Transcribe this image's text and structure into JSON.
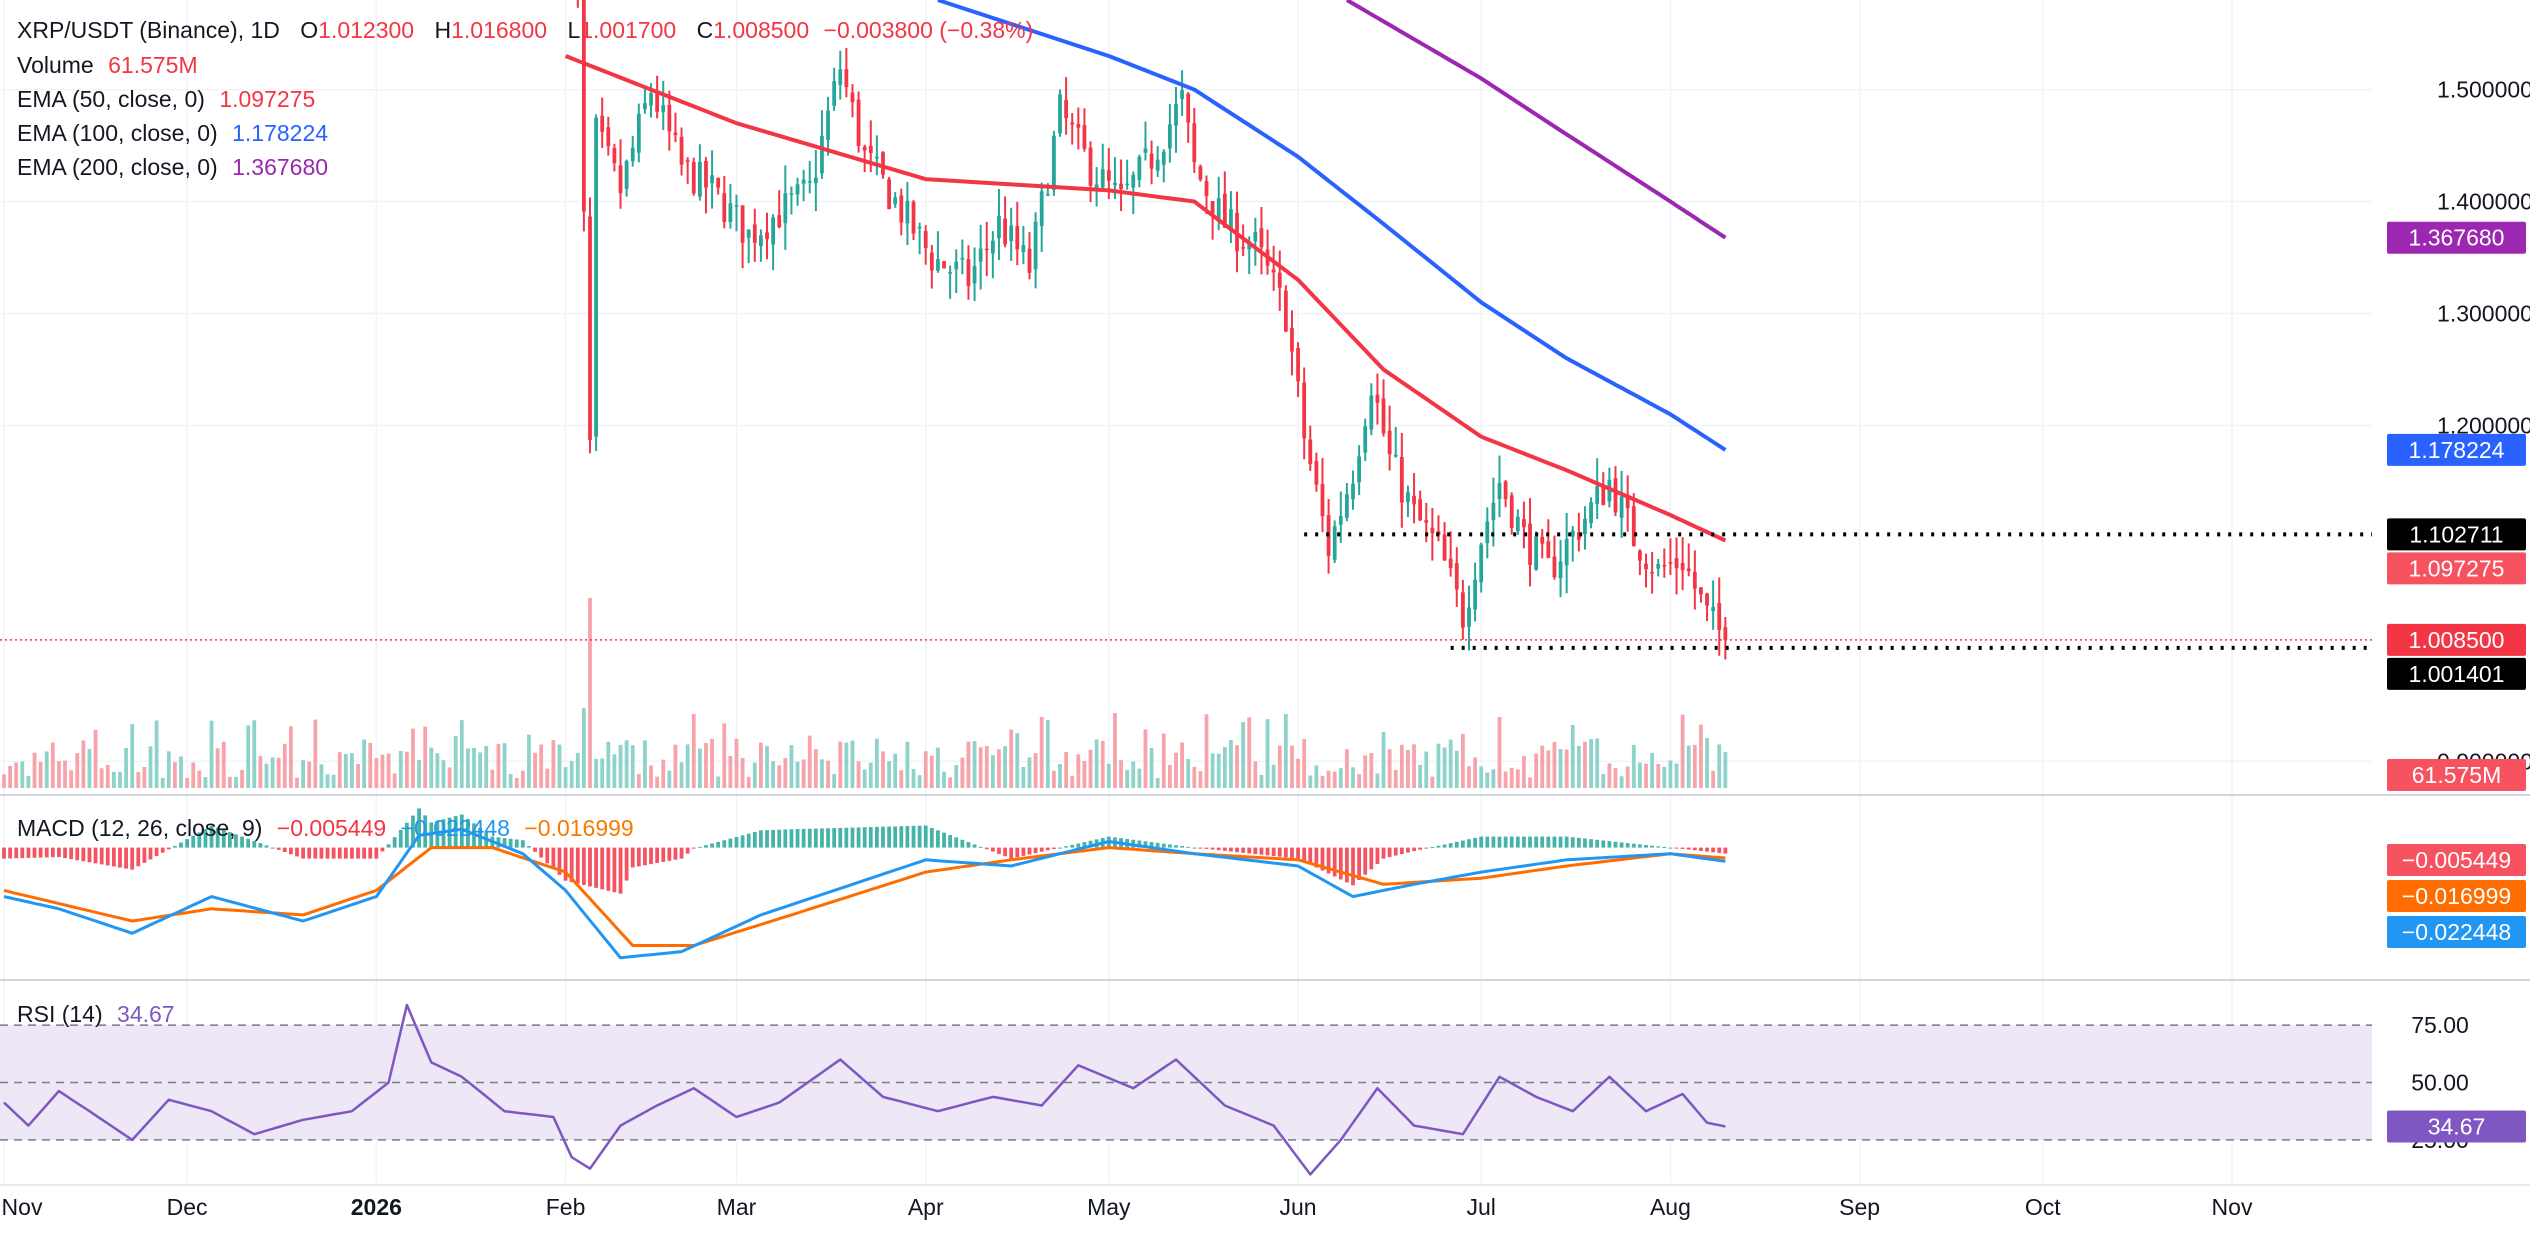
{
  "header": {
    "symbol": "XRP/USDT (Binance), 1D",
    "open_key": "O",
    "open": "1.012300",
    "high_key": "H",
    "high": "1.016800",
    "low_key": "L",
    "low": "1.001700",
    "close_key": "C",
    "close": "1.008500",
    "change": "−0.003800 (−0.38%)"
  },
  "legend": {
    "volume_label": "Volume",
    "volume_value": "61.575M",
    "ema50_label": "EMA (50, close, 0)",
    "ema50_value": "1.097275",
    "ema100_label": "EMA (100, close, 0)",
    "ema100_value": "1.178224",
    "ema200_label": "EMA (200, close, 0)",
    "ema200_value": "1.367680",
    "macd_label": "MACD (12, 26, close, 9)",
    "macd_hist": "−0.005449",
    "macd_line": "−0.022448",
    "macd_signal": "−0.016999",
    "rsi_label": "RSI (14)",
    "rsi_value": "34.67"
  },
  "price_badges": [
    {
      "value": 1.36768,
      "text": "1.367680",
      "color": "#9c27b0",
      "name": "ema200-price-badge"
    },
    {
      "value": 1.178224,
      "text": "1.178224",
      "color": "#2962ff",
      "name": "ema100-price-badge"
    },
    {
      "value": 1.102711,
      "text": "1.102711",
      "color": "#000000",
      "name": "resistance-price-badge"
    },
    {
      "value": 1.097275,
      "text": "1.097275",
      "color": "#f7525f",
      "name": "ema50-price-badge"
    },
    {
      "value": 1.0085,
      "text": "1.008500",
      "color": "#f23645",
      "name": "last-price-badge"
    },
    {
      "value": 1.001401,
      "text": "1.001401",
      "color": "#000000",
      "name": "support-price-badge"
    }
  ],
  "volume_badge": {
    "text": "61.575M",
    "color": "#f7525f"
  },
  "macd_badges": [
    {
      "value": -0.005449,
      "text": "−0.005449",
      "color": "#f7525f"
    },
    {
      "value": -0.016999,
      "text": "−0.016999",
      "color": "#ff6d00"
    },
    {
      "value": -0.022448,
      "text": "−0.022448",
      "color": "#2196f3"
    }
  ],
  "rsi_badge": {
    "value": 34.67,
    "text": "34.67",
    "color": "#7e57c2"
  },
  "colors": {
    "up": "#26a69a",
    "down": "#f23645",
    "up_volume": "#8ed3c9",
    "down_volume": "#f7a3aa",
    "ema50": "#f23645",
    "ema100": "#2962ff",
    "ema200": "#9c27b0",
    "macd": "#2196f3",
    "signal": "#ff6d00",
    "rsi": "#7e57c2",
    "rsi_band": "#ede7f6"
  },
  "chart_data": {
    "type": "candlestick",
    "title": "XRP/USDT (Binance), 1D",
    "y_ticks": [
      "1.500000",
      "1.400000",
      "1.300000",
      "1.200000",
      "0.900000"
    ],
    "y_tick_values": [
      1.5,
      1.4,
      1.3,
      1.2,
      0.9
    ],
    "ylim": [
      0.87,
      1.58
    ],
    "x_ticks": [
      "Nov",
      "Dec",
      "2026",
      "Feb",
      "Mar",
      "Apr",
      "May",
      "Jun",
      "Jul",
      "Aug",
      "Sep",
      "Oct",
      "Nov"
    ],
    "x_tick_dates": [
      "2025-11-01",
      "2025-12-01",
      "2026-01-01",
      "2026-02-01",
      "2026-03-01",
      "2026-04-01",
      "2026-05-01",
      "2026-06-01",
      "2026-07-01",
      "2026-08-01",
      "2026-09-01",
      "2026-10-01",
      "2026-11-01"
    ],
    "candles_start": "2026-02-01",
    "candles_end": "2026-08-10",
    "price_path": [
      [
        "2026-02-01",
        1.62
      ],
      [
        "2026-02-03",
        1.58
      ],
      [
        "2026-02-05",
        1.18
      ],
      [
        "2026-02-06",
        1.46
      ],
      [
        "2026-02-10",
        1.41
      ],
      [
        "2026-02-15",
        1.5
      ],
      [
        "2026-02-20",
        1.43
      ],
      [
        "2026-02-25",
        1.41
      ],
      [
        "2026-03-03",
        1.37
      ],
      [
        "2026-03-08",
        1.39
      ],
      [
        "2026-03-13",
        1.41
      ],
      [
        "2026-03-18",
        1.52
      ],
      [
        "2026-03-22",
        1.44
      ],
      [
        "2026-03-27",
        1.4
      ],
      [
        "2026-04-02",
        1.35
      ],
      [
        "2026-04-08",
        1.33
      ],
      [
        "2026-04-13",
        1.38
      ],
      [
        "2026-04-18",
        1.34
      ],
      [
        "2026-04-23",
        1.48
      ],
      [
        "2026-04-28",
        1.43
      ],
      [
        "2026-05-03",
        1.4
      ],
      [
        "2026-05-08",
        1.44
      ],
      [
        "2026-05-13",
        1.49
      ],
      [
        "2026-05-15",
        1.43
      ],
      [
        "2026-05-20",
        1.38
      ],
      [
        "2026-05-25",
        1.36
      ],
      [
        "2026-05-30",
        1.3
      ],
      [
        "2026-06-02",
        1.19
      ],
      [
        "2026-06-06",
        1.09
      ],
      [
        "2026-06-10",
        1.16
      ],
      [
        "2026-06-13",
        1.24
      ],
      [
        "2026-06-16",
        1.17
      ],
      [
        "2026-06-20",
        1.12
      ],
      [
        "2026-06-24",
        1.09
      ],
      [
        "2026-06-28",
        1.03
      ],
      [
        "2026-07-01",
        1.1
      ],
      [
        "2026-07-04",
        1.15
      ],
      [
        "2026-07-08",
        1.1
      ],
      [
        "2026-07-12",
        1.07
      ],
      [
        "2026-07-17",
        1.11
      ],
      [
        "2026-07-22",
        1.15
      ],
      [
        "2026-07-26",
        1.1
      ],
      [
        "2026-07-30",
        1.07
      ],
      [
        "2026-08-03",
        1.08
      ],
      [
        "2026-08-07",
        1.03
      ],
      [
        "2026-08-10",
        1.0085
      ]
    ],
    "ema50": [
      [
        "2026-02-01",
        1.53
      ],
      [
        "2026-03-01",
        1.47
      ],
      [
        "2026-04-01",
        1.42
      ],
      [
        "2026-05-01",
        1.41
      ],
      [
        "2026-05-15",
        1.4
      ],
      [
        "2026-06-01",
        1.33
      ],
      [
        "2026-06-15",
        1.25
      ],
      [
        "2026-07-01",
        1.19
      ],
      [
        "2026-07-15",
        1.16
      ],
      [
        "2026-08-01",
        1.12
      ],
      [
        "2026-08-10",
        1.097275
      ]
    ],
    "ema100": [
      [
        "2026-04-03",
        1.58
      ],
      [
        "2026-05-01",
        1.53
      ],
      [
        "2026-05-15",
        1.5
      ],
      [
        "2026-06-01",
        1.44
      ],
      [
        "2026-06-15",
        1.38
      ],
      [
        "2026-07-01",
        1.31
      ],
      [
        "2026-07-15",
        1.26
      ],
      [
        "2026-08-01",
        1.21
      ],
      [
        "2026-08-10",
        1.178224
      ]
    ],
    "ema200": [
      [
        "2026-06-09",
        1.58
      ],
      [
        "2026-07-01",
        1.51
      ],
      [
        "2026-07-15",
        1.46
      ],
      [
        "2026-08-01",
        1.4
      ],
      [
        "2026-08-10",
        1.36768
      ]
    ],
    "resistance": {
      "value": 1.102711,
      "from": "2026-06-02",
      "to": "2026-11-30"
    },
    "support": {
      "value": 1.001401,
      "from": "2026-06-26",
      "to": "2026-11-30"
    },
    "last_price": 1.0085,
    "volume_last": "61.575M",
    "volume_spike": {
      "date": "2026-02-05"
    },
    "macd": {
      "ylim": [
        -0.2,
        0.05
      ],
      "macd_line": [
        [
          "2025-11-01",
          -0.08
        ],
        [
          "2025-11-10",
          -0.1
        ],
        [
          "2025-11-22",
          -0.14
        ],
        [
          "2025-12-05",
          -0.08
        ],
        [
          "2025-12-20",
          -0.12
        ],
        [
          "2026-01-01",
          -0.08
        ],
        [
          "2026-01-08",
          0.02
        ],
        [
          "2026-01-15",
          0.03
        ],
        [
          "2026-01-25",
          -0.01
        ],
        [
          "2026-02-01",
          -0.07
        ],
        [
          "2026-02-10",
          -0.18
        ],
        [
          "2026-02-20",
          -0.17
        ],
        [
          "2026-03-05",
          -0.11
        ],
        [
          "2026-03-20",
          -0.06
        ],
        [
          "2026-04-01",
          -0.02
        ],
        [
          "2026-04-15",
          -0.03
        ],
        [
          "2026-05-01",
          0.01
        ],
        [
          "2026-05-15",
          -0.01
        ],
        [
          "2026-06-01",
          -0.03
        ],
        [
          "2026-06-10",
          -0.08
        ],
        [
          "2026-06-20",
          -0.06
        ],
        [
          "2026-07-01",
          -0.04
        ],
        [
          "2026-07-15",
          -0.02
        ],
        [
          "2026-08-01",
          -0.01
        ],
        [
          "2026-08-10",
          -0.022448
        ]
      ],
      "signal_line": [
        [
          "2025-11-01",
          -0.07
        ],
        [
          "2025-11-22",
          -0.12
        ],
        [
          "2025-12-05",
          -0.1
        ],
        [
          "2025-12-20",
          -0.11
        ],
        [
          "2026-01-01",
          -0.07
        ],
        [
          "2026-01-10",
          0.0
        ],
        [
          "2026-01-20",
          0.0
        ],
        [
          "2026-02-01",
          -0.04
        ],
        [
          "2026-02-12",
          -0.16
        ],
        [
          "2026-02-22",
          -0.16
        ],
        [
          "2026-03-10",
          -0.11
        ],
        [
          "2026-04-01",
          -0.04
        ],
        [
          "2026-04-15",
          -0.02
        ],
        [
          "2026-05-01",
          0.0
        ],
        [
          "2026-05-15",
          -0.01
        ],
        [
          "2026-06-01",
          -0.02
        ],
        [
          "2026-06-15",
          -0.06
        ],
        [
          "2026-07-01",
          -0.05
        ],
        [
          "2026-07-15",
          -0.03
        ],
        [
          "2026-08-01",
          -0.01
        ],
        [
          "2026-08-10",
          -0.016999
        ]
      ]
    },
    "rsi": {
      "ylim": [
        15,
        85
      ],
      "levels": [
        "75.00",
        "50.00",
        "25.00"
      ],
      "level_values": [
        75,
        50,
        25
      ],
      "series": [
        [
          "2025-11-01",
          43
        ],
        [
          "2025-11-05",
          35
        ],
        [
          "2025-11-10",
          47
        ],
        [
          "2025-11-15",
          40
        ],
        [
          "2025-11-22",
          30
        ],
        [
          "2025-11-28",
          44
        ],
        [
          "2025-12-05",
          40
        ],
        [
          "2025-12-12",
          32
        ],
        [
          "2025-12-20",
          37
        ],
        [
          "2025-12-28",
          40
        ],
        [
          "2026-01-03",
          50
        ],
        [
          "2026-01-06",
          77
        ],
        [
          "2026-01-10",
          57
        ],
        [
          "2026-01-15",
          52
        ],
        [
          "2026-01-22",
          40
        ],
        [
          "2026-01-30",
          38
        ],
        [
          "2026-02-02",
          24
        ],
        [
          "2026-02-05",
          20
        ],
        [
          "2026-02-10",
          35
        ],
        [
          "2026-02-16",
          42
        ],
        [
          "2026-02-22",
          48
        ],
        [
          "2026-03-01",
          38
        ],
        [
          "2026-03-08",
          43
        ],
        [
          "2026-03-18",
          58
        ],
        [
          "2026-03-25",
          45
        ],
        [
          "2026-04-03",
          40
        ],
        [
          "2026-04-12",
          45
        ],
        [
          "2026-04-20",
          42
        ],
        [
          "2026-04-26",
          56
        ],
        [
          "2026-05-05",
          48
        ],
        [
          "2026-05-12",
          58
        ],
        [
          "2026-05-20",
          42
        ],
        [
          "2026-05-28",
          35
        ],
        [
          "2026-06-03",
          18
        ],
        [
          "2026-06-08",
          30
        ],
        [
          "2026-06-14",
          48
        ],
        [
          "2026-06-20",
          35
        ],
        [
          "2026-06-28",
          32
        ],
        [
          "2026-07-04",
          52
        ],
        [
          "2026-07-10",
          45
        ],
        [
          "2026-07-16",
          40
        ],
        [
          "2026-07-22",
          52
        ],
        [
          "2026-07-28",
          40
        ],
        [
          "2026-08-03",
          46
        ],
        [
          "2026-08-07",
          36
        ],
        [
          "2026-08-10",
          34.67
        ]
      ]
    }
  }
}
